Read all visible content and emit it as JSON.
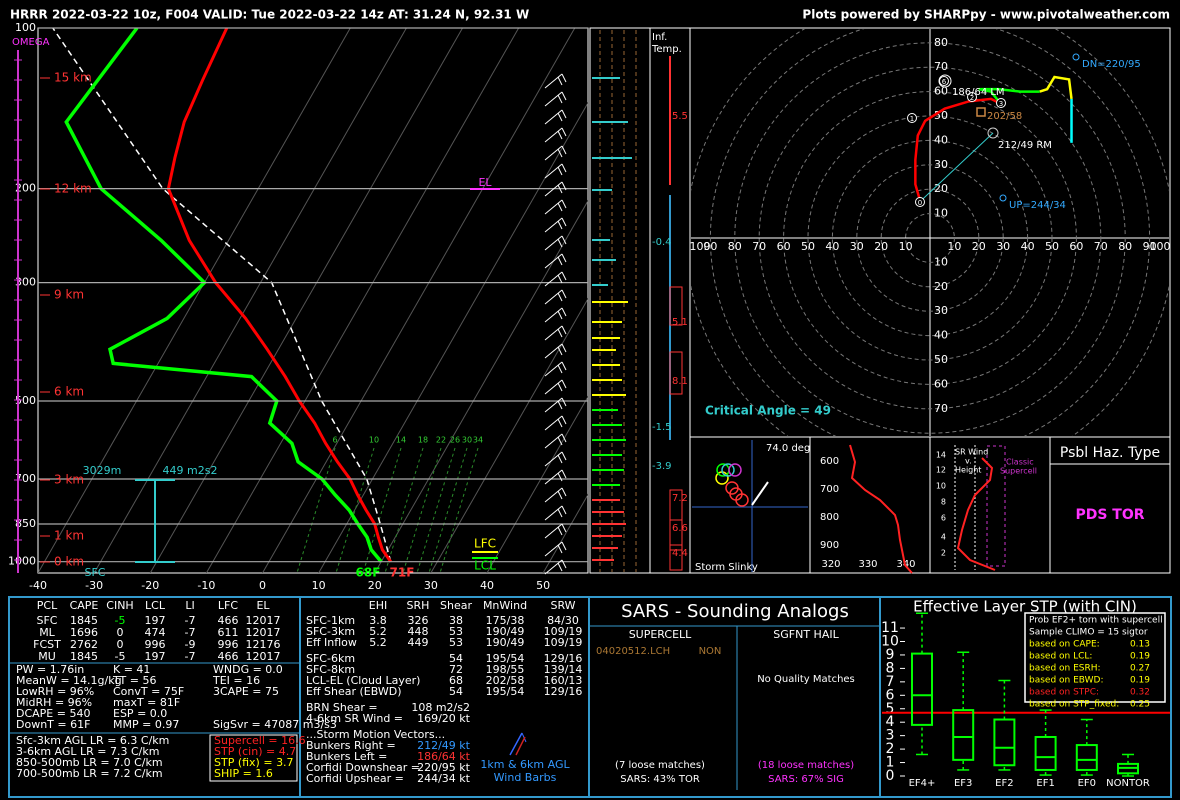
{
  "header": {
    "title": "HRRR 2022-03-22 10z, F004  VALID: Tue 2022-03-22 14z  AT: 31.24 N, 92.31 W",
    "credit": "Plots powered by SHARPpy - www.pivotalweather.com"
  },
  "skewt": {
    "xlim": [
      -40,
      58
    ],
    "ylim": [
      1050,
      100
    ],
    "log_scale": true,
    "yticks": [
      100,
      200,
      300,
      500,
      700,
      850,
      1000
    ],
    "xticks": [
      -40,
      -30,
      -20,
      -10,
      0,
      10,
      20,
      30,
      40,
      50
    ],
    "height_labels": [
      "15 km",
      "12 km",
      "9 km",
      "6 km",
      "3 km",
      "1 km",
      "0 km"
    ],
    "omega_label": "OMEGA",
    "sfc_label": "SFC",
    "mixing_ratio_labels": [
      "6",
      "10",
      "14",
      "18",
      "22",
      "26",
      "30",
      "34"
    ],
    "temperature": {
      "color": "#ff0000",
      "pressure": [
        1000,
        950,
        900,
        850,
        800,
        750,
        700,
        650,
        600,
        550,
        500,
        450,
        400,
        350,
        300,
        250,
        200,
        175,
        150,
        125,
        100
      ],
      "values": [
        21.7,
        19,
        17,
        15,
        12,
        9,
        6,
        2,
        -2,
        -6,
        -11,
        -16,
        -22,
        -29,
        -38,
        -47,
        -56,
        -58,
        -60,
        -61,
        -62
      ]
    },
    "dewpoint": {
      "color": "#00ff00",
      "pressure": [
        1000,
        950,
        900,
        850,
        800,
        750,
        700,
        650,
        600,
        550,
        500,
        450,
        425,
        400,
        350,
        300,
        250,
        200,
        150,
        100
      ],
      "values": [
        20,
        17,
        15,
        12,
        9,
        5,
        1,
        -5,
        -8,
        -14,
        -15,
        -22,
        -48,
        -50,
        -43,
        -40,
        -52,
        -68,
        -81,
        -78
      ]
    },
    "parcel": {
      "color": "#ffffff",
      "pressure": [
        1000,
        850,
        700,
        500,
        300,
        200,
        100
      ],
      "values": [
        21.7,
        16,
        9,
        -7,
        -28,
        -57,
        -93
      ]
    },
    "annotations": {
      "el": "EL",
      "lfc": "LFC",
      "lcl": "LCL",
      "sfc_temp": "71F",
      "sfc_dew": "68F",
      "inflow_top": "3029m",
      "inflow_srh": "449 m2s2"
    }
  },
  "inferred_temp": {
    "title": [
      "Inf.",
      "Temp."
    ],
    "labels": [
      "5.5",
      "-0.4",
      "5.1",
      "8.1",
      "-1.5",
      "-3.9",
      "7.2",
      "6.6",
      "4.4"
    ]
  },
  "hodograph": {
    "ring_ticks": [
      10,
      20,
      30,
      40,
      50,
      60,
      70,
      80,
      90,
      100
    ],
    "trace": [
      {
        "color": "#ff0000",
        "u": [
          -4,
          -6,
          -6,
          -5,
          -2,
          6,
          16,
          25,
          29
        ],
        "v": [
          15,
          22,
          32,
          42,
          48,
          53,
          56,
          57,
          55
        ]
      },
      {
        "color": "#00ff00",
        "u": [
          29,
          25,
          20,
          28,
          37,
          45
        ],
        "v": [
          55,
          60,
          61,
          61,
          60,
          60
        ]
      },
      {
        "color": "#ffff00",
        "u": [
          45,
          48,
          51,
          57,
          58
        ],
        "v": [
          60,
          61,
          66,
          65,
          57
        ]
      },
      {
        "color": "#00ffff",
        "u": [
          58,
          58,
          58
        ],
        "v": [
          57,
          48,
          39
        ]
      }
    ],
    "markers": [
      "0",
      "1",
      "2",
      "3",
      "6"
    ],
    "labels": {
      "dn": "DN=220/95",
      "up": "UP=244/34",
      "mean_wind": "202/58",
      "rm": "212/49 RM",
      "lm": "186/64 LM"
    },
    "critical_angle": "Critical Angle = 49"
  },
  "slinky": {
    "angle": "74.0 deg",
    "title": "Storm Slinky"
  },
  "theta_e": {
    "pressure_labels": [
      "600",
      "700",
      "800",
      "900"
    ],
    "theta_labels": [
      "320",
      "330",
      "340"
    ]
  },
  "sr_wind": {
    "title": [
      "SR Wind",
      "v.",
      "Height"
    ],
    "supercell": [
      "Classic",
      "Supercell"
    ],
    "height_labels": [
      "14",
      "12",
      "10",
      "8",
      "6",
      "4",
      "2"
    ]
  },
  "hazard": {
    "title": "Psbl Haz. Type",
    "type": "PDS TOR"
  },
  "parcels": {
    "headers": [
      "PCL",
      "CAPE",
      "CINH",
      "LCL",
      "LI",
      "LFC",
      "EL"
    ],
    "rows": [
      [
        "SFC",
        "1845",
        "-5",
        "197",
        "-7",
        "466",
        "12017"
      ],
      [
        "ML",
        "1696",
        "0",
        "474",
        "-7",
        "611",
        "12017"
      ],
      [
        "FCST",
        "2762",
        "0",
        "996",
        "-9",
        "996",
        "12176"
      ],
      [
        "MU",
        "1845",
        "-5",
        "197",
        "-7",
        "466",
        "12017"
      ]
    ]
  },
  "indices": {
    "col1": [
      "PW = 1.76in",
      "MeanW = 14.1g/kg",
      "LowRH = 96%",
      "MidRH = 96%",
      "DCAPE = 540",
      "DownT = 61F"
    ],
    "col2": [
      "K = 41",
      "TT = 56",
      "ConvT = 75F",
      "maxT = 81F",
      "ESP = 0.0",
      "MMP = 0.97"
    ],
    "col3": [
      "WNDG = 0.0",
      "TEI = 16",
      "3CAPE = 75"
    ],
    "sigsvr": "SigSvr = 47087 m3/s3"
  },
  "lapse_rates": [
    "Sfc-3km AGL LR = 6.3 C/km",
    "3-6km AGL LR = 7.3 C/km",
    "850-500mb LR = 7.0 C/km",
    "700-500mb LR = 7.2 C/km"
  ],
  "composites": [
    {
      "text": "Supercell = 16.6",
      "color": "#ff2222"
    },
    {
      "text": "STP (cin) = 4.7",
      "color": "#ff2222"
    },
    {
      "text": "STP (fix) = 3.7",
      "color": "#ffff00"
    },
    {
      "text": "SHIP = 1.6",
      "color": "#ffff00"
    }
  ],
  "kinematics": {
    "headers": [
      "EHI",
      "SRH",
      "Shear",
      "MnWind",
      "SRW"
    ],
    "rows": [
      {
        "label": "SFC-1km",
        "cells": [
          "3.8",
          "326",
          "38",
          "175/38",
          "84/30"
        ]
      },
      {
        "label": "SFC-3km",
        "cells": [
          "5.2",
          "448",
          "53",
          "190/49",
          "109/19"
        ]
      },
      {
        "label": "Eff Inflow",
        "cells": [
          "5.2",
          "449",
          "53",
          "190/49",
          "109/19"
        ]
      }
    ],
    "shear_rows": [
      {
        "label": "SFC-6km",
        "cells": [
          "54",
          "195/54",
          "129/16"
        ]
      },
      {
        "label": "SFC-8km",
        "cells": [
          "72",
          "198/55",
          "139/14"
        ]
      },
      {
        "label": "LCL-EL (Cloud Layer)",
        "cells": [
          "68",
          "202/58",
          "160/13"
        ]
      },
      {
        "label": "Eff Shear (EBWD)",
        "cells": [
          "54",
          "195/54",
          "129/16"
        ]
      }
    ],
    "extras": [
      {
        "label": "BRN Shear =",
        "value": "108 m2/s2"
      },
      {
        "label": "4-6km SR Wind =",
        "value": "169/20 kt"
      }
    ],
    "storm_motion_title": "...Storm Motion Vectors...",
    "storm_motion": [
      {
        "label": "Bunkers Right =",
        "value": "212/49 kt",
        "color": "#3399ff"
      },
      {
        "label": "Bunkers Left =",
        "value": "186/64 kt",
        "color": "#ff3333"
      },
      {
        "label": "Corfidi Downshear =",
        "value": "220/95 kt",
        "color": "#ffffff"
      },
      {
        "label": "Corfidi Upshear =",
        "value": "244/34 kt",
        "color": "#ffffff"
      }
    ],
    "barb_legend": [
      "1km & 6km AGL",
      "Wind Barbs"
    ]
  },
  "sars": {
    "title": "SARS - Sounding Analogs",
    "supercell": {
      "title": "SUPERCELL",
      "match": "04020512.LCH",
      "match_type": "NON",
      "loose": "(7 loose matches)",
      "result": "SARS: 43% TOR"
    },
    "hail": {
      "title": "SGFNT HAIL",
      "none": "No Quality Matches",
      "loose": "(18 loose matches)",
      "result": "SARS: 67% SIG"
    }
  },
  "stp": {
    "title": "Effective Layer STP (with CIN)",
    "ylim": [
      0,
      12
    ],
    "yticks": [
      0,
      1,
      2,
      3,
      4,
      5,
      6,
      7,
      8,
      9,
      10,
      11
    ],
    "categories": [
      "EF4+",
      "EF3",
      "EF2",
      "EF1",
      "EF0",
      "NONTOR"
    ],
    "low": [
      1.6,
      0.45,
      0.45,
      0.07,
      0.07,
      0
    ],
    "q1": [
      3.8,
      1.2,
      0.8,
      0.45,
      0.45,
      0.2
    ],
    "median": [
      6.0,
      2.9,
      2.1,
      1.4,
      1.2,
      0.6
    ],
    "q3": [
      9.1,
      4.9,
      4.2,
      2.9,
      2.3,
      0.9
    ],
    "high": [
      12.1,
      9.2,
      7.1,
      4.9,
      4.2,
      1.6
    ],
    "color": "#00ff00",
    "value": 4.7,
    "value_color": "#ff0000",
    "legend_title": [
      "Prob EF2+ torn with supercell",
      "Sample CLIMO = 15 sigtor"
    ],
    "probs": [
      {
        "label": "based on CAPE:",
        "value": "0.13",
        "color": "#ffff00"
      },
      {
        "label": "based on LCL:",
        "value": "0.19",
        "color": "#ffff00"
      },
      {
        "label": "based on ESRH:",
        "value": "0.27",
        "color": "#ffff00"
      },
      {
        "label": "based on EBWD:",
        "value": "0.19",
        "color": "#ffff00"
      },
      {
        "label": "based on STPC:",
        "value": "0.32",
        "color": "#ff2222"
      },
      {
        "label": "based on STP_fixed:",
        "value": "0.25",
        "color": "#ffff00"
      }
    ]
  }
}
